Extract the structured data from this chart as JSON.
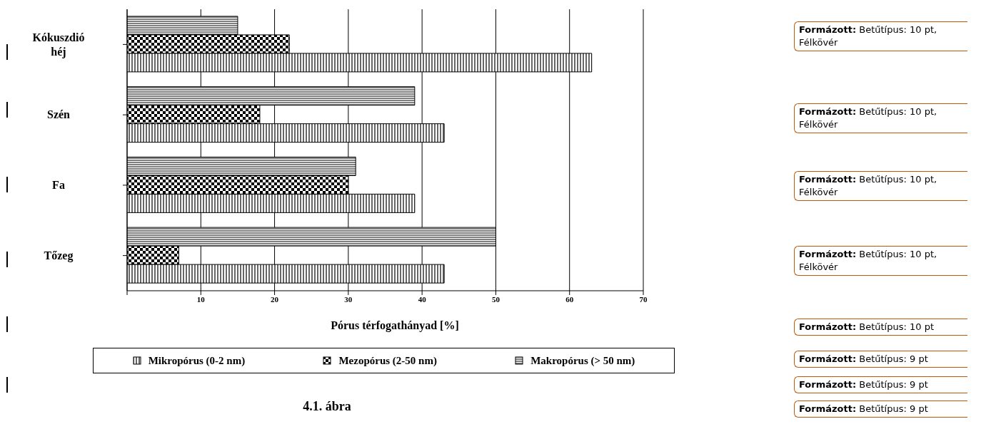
{
  "chart_data": {
    "type": "bar",
    "orientation": "horizontal",
    "categories": [
      "Kókuszdió héj",
      "Szén",
      "Fa",
      "Tőzeg"
    ],
    "series": [
      {
        "name": "Mikropórus (0-2 nm)",
        "color": "#000000",
        "values": [
          63,
          43,
          39,
          43
        ]
      },
      {
        "name": "Mezopórus (2-50 nm)",
        "color": "#000000",
        "values": [
          22,
          18,
          30,
          7
        ]
      },
      {
        "name": "Makropórus (> 50 nm)",
        "color": "#000000",
        "values": [
          15,
          39,
          31,
          50
        ]
      }
    ],
    "xlabel": "Pórus térfogathányad [%]",
    "xlim": [
      0,
      70
    ],
    "xticks": [
      {
        "value": 0,
        "label": null
      },
      10,
      20,
      30,
      40,
      50,
      60,
      70
    ],
    "grid": "x",
    "legend": "bottom",
    "annotations": [
      "4.1. ábra",
      "Formázott: Betűtípus: 10 pt, Félkövér",
      "Formázott: Betűtípus: 10 pt, Félkövér",
      "Formázott: Betűtípus: 10 pt, Félkövér",
      "Formázott: Betűtípus: 10 pt, Félkövér",
      "Formázott: Betűtípus: 10 pt",
      "Formázott: Betűtípus: 9 pt",
      "Formázott: Betűtípus: 9 pt",
      "Formázott: Betűtípus: 9 pt"
    ]
  }
}
